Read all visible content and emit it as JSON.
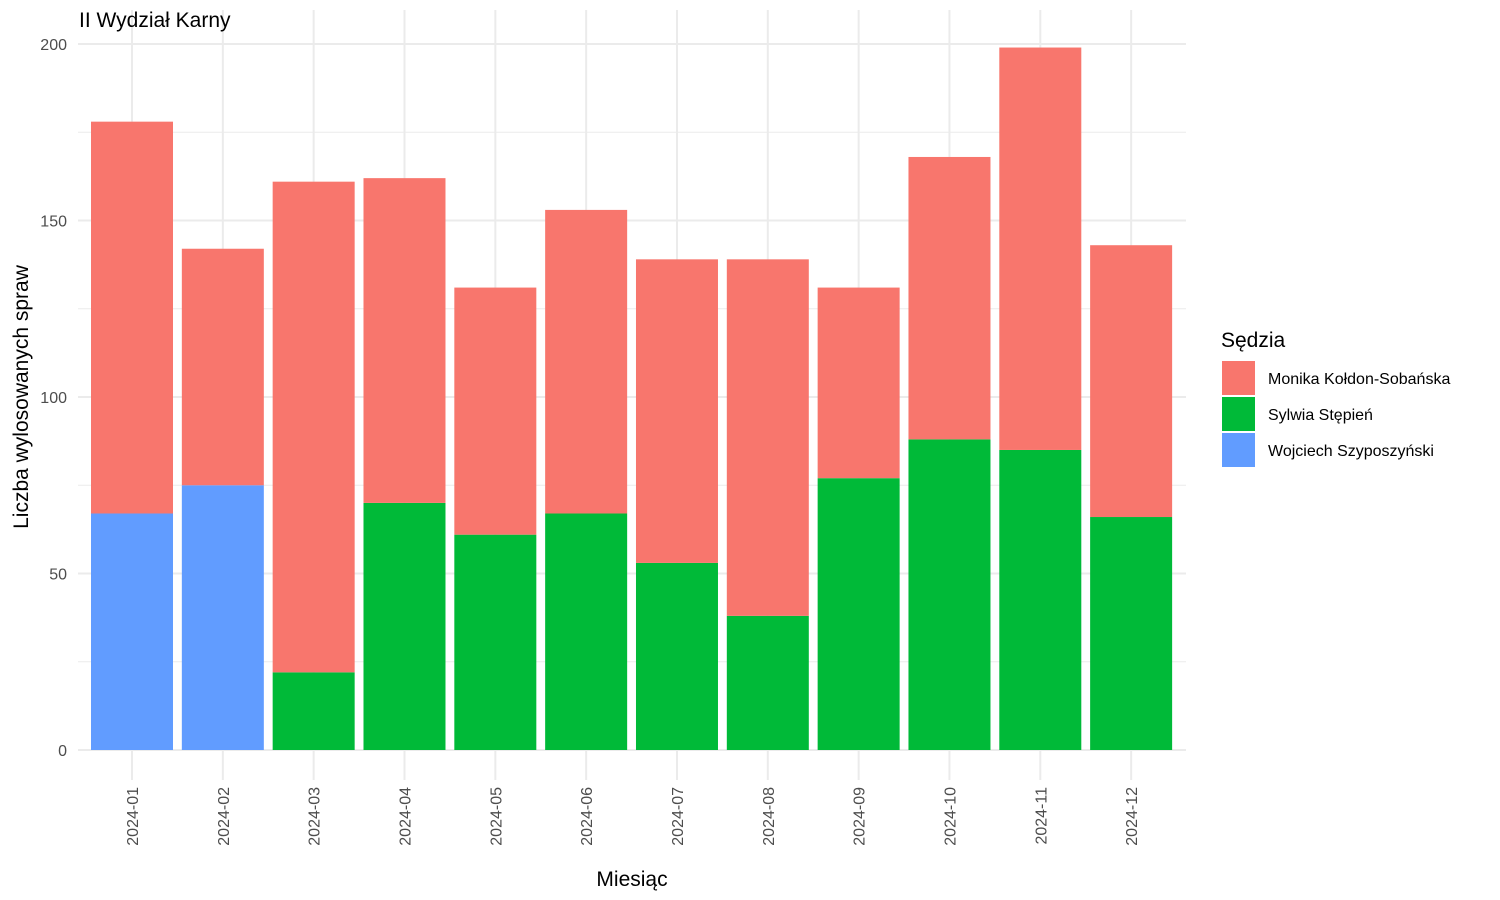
{
  "chart_data": {
    "type": "bar",
    "stacked": true,
    "title": "II Wydział Karny",
    "xlabel": "Miesiąc",
    "ylabel": "Liczba wylosowanych spraw",
    "ylim": [
      0,
      200
    ],
    "yticks": [
      0,
      50,
      100,
      150,
      200
    ],
    "grid": true,
    "legend_position": "right",
    "legend_title": "Sędzia",
    "categories": [
      "2024-01",
      "2024-02",
      "2024-03",
      "2024-04",
      "2024-05",
      "2024-06",
      "2024-07",
      "2024-08",
      "2024-09",
      "2024-10",
      "2024-11",
      "2024-12"
    ],
    "series": [
      {
        "name": "Monika Kołdon-Sobańska",
        "color": "#F8766D",
        "values": [
          111,
          67,
          139,
          92,
          70,
          86,
          86,
          101,
          54,
          80,
          114,
          77
        ]
      },
      {
        "name": "Sylwia Stępień",
        "color": "#00BA38",
        "values": [
          0,
          0,
          22,
          70,
          61,
          67,
          53,
          38,
          77,
          88,
          85,
          66
        ]
      },
      {
        "name": "Wojciech Szyposzyński",
        "color": "#619CFF",
        "values": [
          67,
          75,
          0,
          0,
          0,
          0,
          0,
          0,
          0,
          0,
          0,
          0
        ]
      }
    ],
    "stack_order_bottom_to_top": [
      "Wojciech Szyposzyński",
      "Sylwia Stępień",
      "Monika Kołdon-Sobańska"
    ]
  }
}
